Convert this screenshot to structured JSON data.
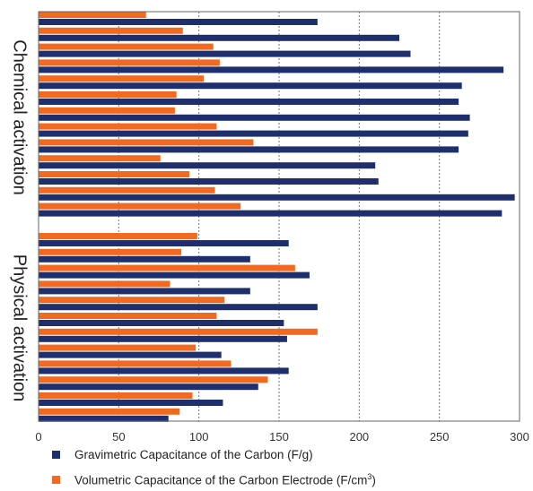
{
  "chart_data": {
    "type": "bar",
    "orientation": "horizontal",
    "xlim": [
      0,
      300
    ],
    "xticks": [
      0,
      50,
      100,
      150,
      200,
      250,
      300
    ],
    "grid": "vertical-dotted",
    "legend_placement": "bottom",
    "groups": [
      {
        "label": "Chemical activation",
        "rows": [
          {
            "gravimetric": 174,
            "volumetric": 67
          },
          {
            "gravimetric": 225,
            "volumetric": 90
          },
          {
            "gravimetric": 232,
            "volumetric": 109
          },
          {
            "gravimetric": 290,
            "volumetric": 113
          },
          {
            "gravimetric": 264,
            "volumetric": 103
          },
          {
            "gravimetric": 262,
            "volumetric": 86
          },
          {
            "gravimetric": 269,
            "volumetric": 85
          },
          {
            "gravimetric": 268,
            "volumetric": 111
          },
          {
            "gravimetric": 262,
            "volumetric": 134
          },
          {
            "gravimetric": 210,
            "volumetric": 76
          },
          {
            "gravimetric": 212,
            "volumetric": 94
          },
          {
            "gravimetric": 297,
            "volumetric": 110
          },
          {
            "gravimetric": 289,
            "volumetric": 126
          }
        ]
      },
      {
        "label": "Physical activation",
        "rows": [
          {
            "gravimetric": 156,
            "volumetric": 99
          },
          {
            "gravimetric": 132,
            "volumetric": 89
          },
          {
            "gravimetric": 169,
            "volumetric": 160
          },
          {
            "gravimetric": 132,
            "volumetric": 82
          },
          {
            "gravimetric": 174,
            "volumetric": 116
          },
          {
            "gravimetric": 153,
            "volumetric": 111
          },
          {
            "gravimetric": 155,
            "volumetric": 174
          },
          {
            "gravimetric": 114,
            "volumetric": 98
          },
          {
            "gravimetric": 156,
            "volumetric": 120
          },
          {
            "gravimetric": 137,
            "volumetric": 143
          },
          {
            "gravimetric": 115,
            "volumetric": 96
          },
          {
            "gravimetric": 81,
            "volumetric": 88
          }
        ]
      }
    ],
    "series": [
      {
        "key": "gravimetric",
        "name": "Gravimetric Capacitance  of the Carbon (F/g)",
        "color": "#1f2f6e"
      },
      {
        "key": "volumetric",
        "name": "Volumetric Capacitance of the Carbon Electrode (F/cm",
        "name_superscript": "3",
        "name_suffix": ")",
        "color": "#f26a21"
      }
    ]
  }
}
